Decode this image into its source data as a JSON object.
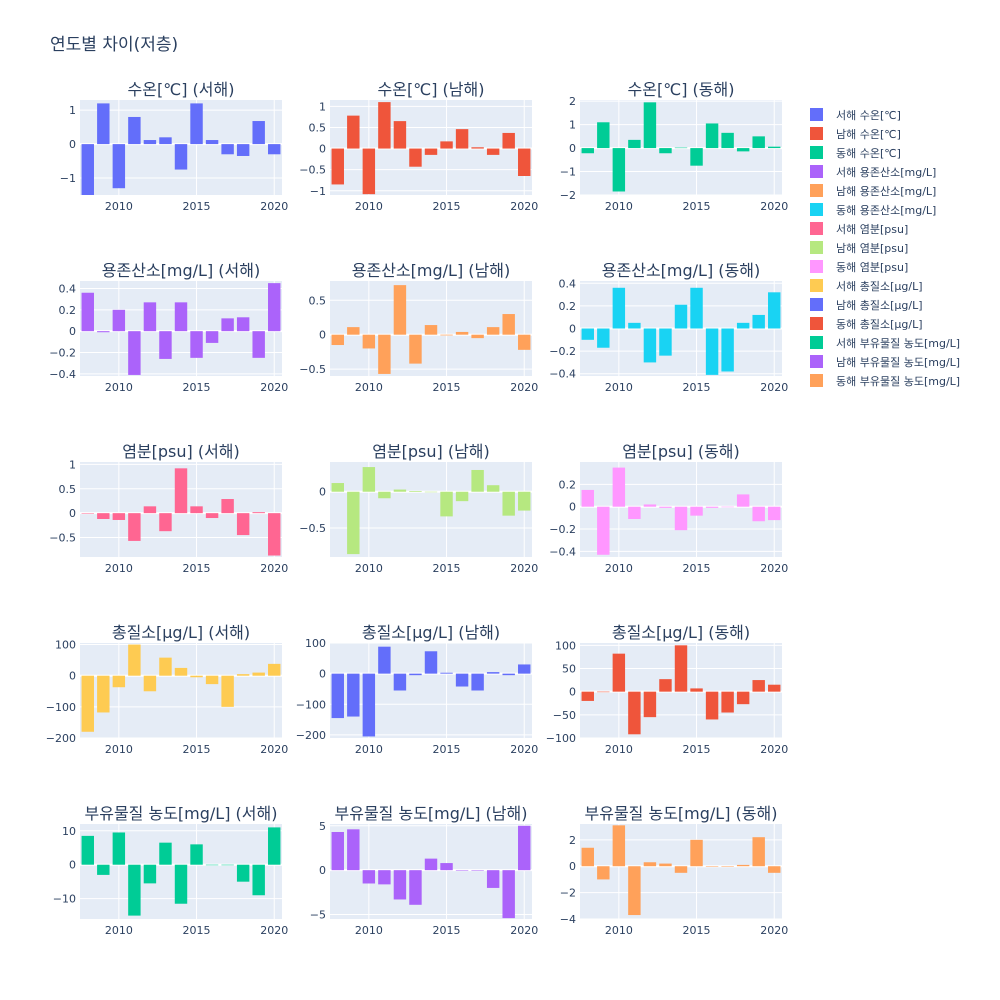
{
  "figure_title": "연도별 차이(저층)",
  "colors": [
    "#636efa",
    "#EF553B",
    "#00cc96",
    "#ab63fa",
    "#FFA15A",
    "#19d3f3",
    "#FF6692",
    "#B6E880",
    "#FF97FF",
    "#FECB52"
  ],
  "chart_data": [
    {
      "type": "bar",
      "title": "수온[℃] (서해)",
      "legend": "서해 수온[℃]",
      "color": "#636efa",
      "x": [
        2008,
        2009,
        2010,
        2011,
        2012,
        2013,
        2014,
        2015,
        2016,
        2017,
        2018,
        2019,
        2020
      ],
      "y": [
        -1.5,
        1.2,
        -1.3,
        0.8,
        0.12,
        0.2,
        -0.75,
        1.2,
        0.12,
        -0.3,
        -0.35,
        0.68,
        -0.3
      ],
      "ylim": [
        -1.5,
        1.3
      ],
      "yticks": [
        -1,
        0,
        1
      ],
      "xticks": [
        2010,
        2015,
        2020
      ]
    },
    {
      "type": "bar",
      "title": "수온[℃] (남해)",
      "legend": "남해 수온[℃]",
      "color": "#EF553B",
      "x": [
        2008,
        2009,
        2010,
        2011,
        2012,
        2013,
        2014,
        2015,
        2016,
        2017,
        2018,
        2019,
        2020
      ],
      "y": [
        -0.85,
        0.78,
        -1.08,
        1.1,
        0.65,
        -0.43,
        -0.15,
        0.17,
        0.46,
        0.03,
        -0.15,
        0.37,
        -0.65
      ],
      "ylim": [
        -1.1,
        1.15
      ],
      "yticks": [
        -1,
        -0.5,
        0,
        0.5,
        1
      ],
      "xticks": [
        2010,
        2015,
        2020
      ]
    },
    {
      "type": "bar",
      "title": "수온[℃] (동해)",
      "legend": "동해 수온[℃]",
      "color": "#00cc96",
      "x": [
        2008,
        2009,
        2010,
        2011,
        2012,
        2013,
        2014,
        2015,
        2016,
        2017,
        2018,
        2019,
        2020
      ],
      "y": [
        -0.22,
        1.1,
        -1.85,
        0.35,
        1.95,
        -0.22,
        0.02,
        -0.75,
        1.05,
        0.65,
        -0.14,
        0.5,
        0.06
      ],
      "ylim": [
        -2,
        2.05
      ],
      "yticks": [
        -2,
        -1,
        0,
        1,
        2
      ],
      "xticks": [
        2010,
        2015,
        2020
      ]
    },
    {
      "type": "bar",
      "title": "용존산소[mg/L] (서해)",
      "legend": "서해 용존산소[mg/L]",
      "color": "#ab63fa",
      "x": [
        2008,
        2009,
        2010,
        2011,
        2012,
        2013,
        2014,
        2015,
        2016,
        2017,
        2018,
        2019,
        2020
      ],
      "y": [
        0.36,
        -0.01,
        0.2,
        -0.41,
        0.27,
        -0.26,
        0.27,
        -0.25,
        -0.11,
        0.12,
        0.13,
        -0.25,
        0.45
      ],
      "ylim": [
        -0.42,
        0.47
      ],
      "yticks": [
        -0.4,
        -0.2,
        0,
        0.2,
        0.4
      ],
      "xticks": [
        2010,
        2015,
        2020
      ]
    },
    {
      "type": "bar",
      "title": "용존산소[mg/L] (남해)",
      "legend": "남해 용존산소[mg/L]",
      "color": "#FFA15A",
      "x": [
        2008,
        2009,
        2010,
        2011,
        2012,
        2013,
        2014,
        2015,
        2016,
        2017,
        2018,
        2019,
        2020
      ],
      "y": [
        -0.15,
        0.11,
        -0.2,
        -0.57,
        0.72,
        -0.42,
        0.14,
        -0.01,
        0.04,
        -0.05,
        0.11,
        0.3,
        -0.22
      ],
      "ylim": [
        -0.6,
        0.78
      ],
      "yticks": [
        -0.5,
        0,
        0.5
      ],
      "xticks": [
        2010,
        2015,
        2020
      ]
    },
    {
      "type": "bar",
      "title": "용존산소[mg/L] (동해)",
      "legend": "동해 용존산소[mg/L]",
      "color": "#19d3f3",
      "x": [
        2008,
        2009,
        2010,
        2011,
        2012,
        2013,
        2014,
        2015,
        2016,
        2017,
        2018,
        2019,
        2020
      ],
      "y": [
        -0.1,
        -0.17,
        0.36,
        0.05,
        -0.3,
        -0.24,
        0.21,
        0.36,
        -0.41,
        -0.38,
        0.05,
        0.12,
        0.32
      ],
      "ylim": [
        -0.42,
        0.42
      ],
      "yticks": [
        -0.4,
        -0.2,
        0,
        0.2,
        0.4
      ],
      "xticks": [
        2010,
        2015,
        2020
      ]
    },
    {
      "type": "bar",
      "title": "염분[psu] (서해)",
      "legend": "서해 염분[psu]",
      "color": "#FF6692",
      "x": [
        2008,
        2009,
        2010,
        2011,
        2012,
        2013,
        2014,
        2015,
        2016,
        2017,
        2018,
        2019,
        2020
      ],
      "y": [
        0.0,
        -0.12,
        -0.14,
        -0.57,
        0.14,
        -0.37,
        0.92,
        0.14,
        -0.1,
        0.29,
        -0.45,
        0.02,
        -0.87
      ],
      "ylim": [
        -0.9,
        1.05
      ],
      "yticks": [
        -0.5,
        0,
        0.5,
        1
      ],
      "xticks": [
        2010,
        2015,
        2020
      ]
    },
    {
      "type": "bar",
      "title": "염분[psu] (남해)",
      "legend": "남해 염분[psu]",
      "color": "#B6E880",
      "x": [
        2008,
        2009,
        2010,
        2011,
        2012,
        2013,
        2014,
        2015,
        2016,
        2017,
        2018,
        2019,
        2020
      ],
      "y": [
        0.12,
        -0.86,
        0.34,
        -0.09,
        0.03,
        0.01,
        0.0,
        -0.34,
        -0.13,
        0.3,
        0.09,
        -0.33,
        -0.26
      ],
      "ylim": [
        -0.9,
        0.41
      ],
      "yticks": [
        -0.5,
        0
      ],
      "xticks": [
        2010,
        2015,
        2020
      ]
    },
    {
      "type": "bar",
      "title": "염분[psu] (동해)",
      "legend": "동해 염분[psu]",
      "color": "#FF97FF",
      "x": [
        2008,
        2009,
        2010,
        2011,
        2012,
        2013,
        2014,
        2015,
        2016,
        2017,
        2018,
        2019,
        2020
      ],
      "y": [
        0.15,
        -0.43,
        0.35,
        -0.11,
        0.02,
        -0.01,
        -0.21,
        -0.08,
        -0.01,
        0.0,
        0.11,
        -0.13,
        -0.12
      ],
      "ylim": [
        -0.45,
        0.4
      ],
      "yticks": [
        -0.4,
        -0.2,
        0,
        0.2
      ],
      "xticks": [
        2010,
        2015,
        2020
      ]
    },
    {
      "type": "bar",
      "title": "총질소[μg/L] (서해)",
      "legend": "서해 총질소[μg/L]",
      "color": "#FECB52",
      "x": [
        2008,
        2009,
        2010,
        2011,
        2012,
        2013,
        2014,
        2015,
        2016,
        2017,
        2018,
        2019,
        2020
      ],
      "y": [
        -180,
        -118,
        -37,
        100,
        -50,
        58,
        25,
        -5,
        -27,
        -100,
        5,
        10,
        38
      ],
      "ylim": [
        -200,
        105
      ],
      "yticks": [
        -200,
        -100,
        0,
        100
      ],
      "xticks": [
        2010,
        2015,
        2020
      ]
    },
    {
      "type": "bar",
      "title": "총질소[μg/L] (남해)",
      "legend": "남해 총질소[μg/L]",
      "color": "#636efa",
      "x": [
        2008,
        2009,
        2010,
        2011,
        2012,
        2013,
        2014,
        2015,
        2016,
        2017,
        2018,
        2019,
        2020
      ],
      "y": [
        -145,
        -140,
        -205,
        88,
        -55,
        -5,
        73,
        3,
        -42,
        -55,
        5,
        -5,
        30
      ],
      "ylim": [
        -210,
        100
      ],
      "yticks": [
        -200,
        -100,
        0,
        100
      ],
      "xticks": [
        2010,
        2015,
        2020
      ]
    },
    {
      "type": "bar",
      "title": "총질소[μg/L] (동해)",
      "legend": "동해 총질소[μg/L]",
      "color": "#EF553B",
      "x": [
        2008,
        2009,
        2010,
        2011,
        2012,
        2013,
        2014,
        2015,
        2016,
        2017,
        2018,
        2019,
        2020
      ],
      "y": [
        -20,
        0,
        82,
        -92,
        -55,
        27,
        100,
        7,
        -60,
        -45,
        -27,
        25,
        15
      ],
      "ylim": [
        -100,
        105
      ],
      "yticks": [
        -100,
        -50,
        0,
        50,
        100
      ],
      "xticks": [
        2010,
        2015,
        2020
      ]
    },
    {
      "type": "bar",
      "title": "부유물질 농도[mg/L] (서해)",
      "legend": "서해 부유물질 농도[mg/L]",
      "color": "#00cc96",
      "x": [
        2008,
        2009,
        2010,
        2011,
        2012,
        2013,
        2014,
        2015,
        2016,
        2017,
        2018,
        2019,
        2020
      ],
      "y": [
        8.5,
        -3,
        9.5,
        -15,
        -5.5,
        6.5,
        -11.5,
        6,
        0,
        0,
        -5,
        -9,
        11
      ],
      "ylim": [
        -16,
        12
      ],
      "yticks": [
        -10,
        0,
        10
      ],
      "xticks": [
        2010,
        2015,
        2020
      ]
    },
    {
      "type": "bar",
      "title": "부유물질 농도[mg/L] (남해)",
      "legend": "남해 부유물질 농도[mg/L]",
      "color": "#ab63fa",
      "x": [
        2008,
        2009,
        2010,
        2011,
        2012,
        2013,
        2014,
        2015,
        2016,
        2017,
        2018,
        2019,
        2020
      ],
      "y": [
        4.3,
        4.6,
        -1.5,
        -1.6,
        -3.3,
        -3.9,
        1.3,
        0.8,
        0,
        0,
        -2,
        -5.4,
        5
      ],
      "ylim": [
        -5.5,
        5.2
      ],
      "yticks": [
        -5,
        0,
        5
      ],
      "xticks": [
        2010,
        2015,
        2020
      ]
    },
    {
      "type": "bar",
      "title": "부유물질 농도[mg/L] (동해)",
      "legend": "동해 부유물질 농도[mg/L]",
      "color": "#FFA15A",
      "x": [
        2008,
        2009,
        2010,
        2011,
        2012,
        2013,
        2014,
        2015,
        2016,
        2017,
        2018,
        2019,
        2020
      ],
      "y": [
        1.4,
        -1,
        3.1,
        -3.7,
        0.3,
        0.2,
        -0.5,
        2,
        0,
        0,
        0.1,
        2.2,
        -0.5
      ],
      "ylim": [
        -4,
        3.2
      ],
      "yticks": [
        -4,
        -2,
        0,
        2
      ],
      "xticks": [
        2010,
        2015,
        2020
      ]
    }
  ]
}
